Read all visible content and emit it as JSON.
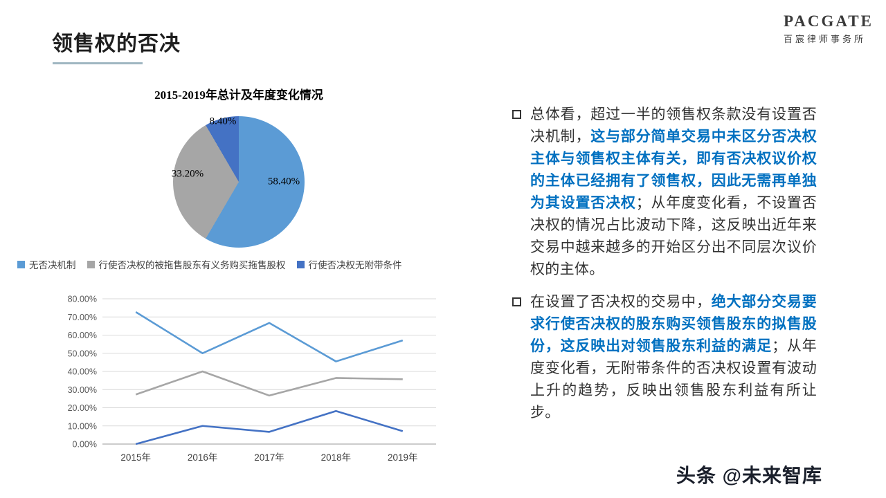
{
  "header": {
    "title": "领售权的否决",
    "logo_name": "PACGATE",
    "logo_subtitle": "百宸律师事务所"
  },
  "colors": {
    "emphasis_blue": "#0070C0",
    "pie_blue": "#5B9BD5",
    "pie_gray": "#A6A6A6",
    "pie_dark_blue": "#4472C4",
    "gridline": "#d9d9d9",
    "axis": "#9a9a9a"
  },
  "chart_data": [
    {
      "type": "pie",
      "title": "2015-2019年总计及年度变化情况",
      "labels": [
        "无否决机制",
        "行使否决权的被拖售股东有义务购买拖售股权",
        "行使否决权无附带条件"
      ],
      "values": [
        58.4,
        33.2,
        8.4
      ],
      "display_labels": [
        "58.40%",
        "33.20%",
        "8.40%"
      ],
      "colors": [
        "#5B9BD5",
        "#A6A6A6",
        "#4472C4"
      ],
      "start_angle_deg": 0,
      "direction": "clockwise"
    },
    {
      "type": "line",
      "categories": [
        "2015年",
        "2016年",
        "2017年",
        "2018年",
        "2019年"
      ],
      "series": [
        {
          "name": "无否决机制",
          "color": "#5B9BD5",
          "values": [
            72.7,
            50.0,
            66.7,
            45.5,
            57.1
          ]
        },
        {
          "name": "行使否决权的被拖售股东有义务购买拖售股权",
          "color": "#A6A6A6",
          "values": [
            27.3,
            40.0,
            26.7,
            36.4,
            35.7
          ]
        },
        {
          "name": "行使否决权无附带条件",
          "color": "#4472C4",
          "values": [
            0.0,
            10.0,
            6.7,
            18.2,
            7.1
          ]
        }
      ],
      "ylim": [
        0,
        80
      ],
      "ytick_step": 10,
      "ytick_format": "percent_2dp",
      "grid": true,
      "legend_position": "above"
    }
  ],
  "bullets": [
    {
      "segments": [
        {
          "text": "总体看，超过一半的领售权条款没有设置否决机制，",
          "style": "normal"
        },
        {
          "text": "这与部分简单交易中未区分否决权主体与领售权主体有关，即有否决权议价权的主体已经拥有了领售权，因此无需再单独为其设置否决权",
          "style": "emphasis"
        },
        {
          "text": "；从年度变化看，不设置否决权的情况占比波动下降，这反映出近年来交易中越来越多的开始区分出不同层次议价权的主体。",
          "style": "normal"
        }
      ]
    },
    {
      "segments": [
        {
          "text": "在设置了否决权的交易中，",
          "style": "normal"
        },
        {
          "text": "绝大部分交易要求行使否决权的股东购买领售股东的拟售股份，这反映出对领售股东利益的满足",
          "style": "emphasis"
        },
        {
          "text": "；从年度变化看，无附带条件的否决权设置有波动上升的趋势，反映出领售股东利益有所让步。",
          "style": "normal"
        }
      ]
    }
  ],
  "footer": {
    "watermark": "头条 @未来智库"
  }
}
